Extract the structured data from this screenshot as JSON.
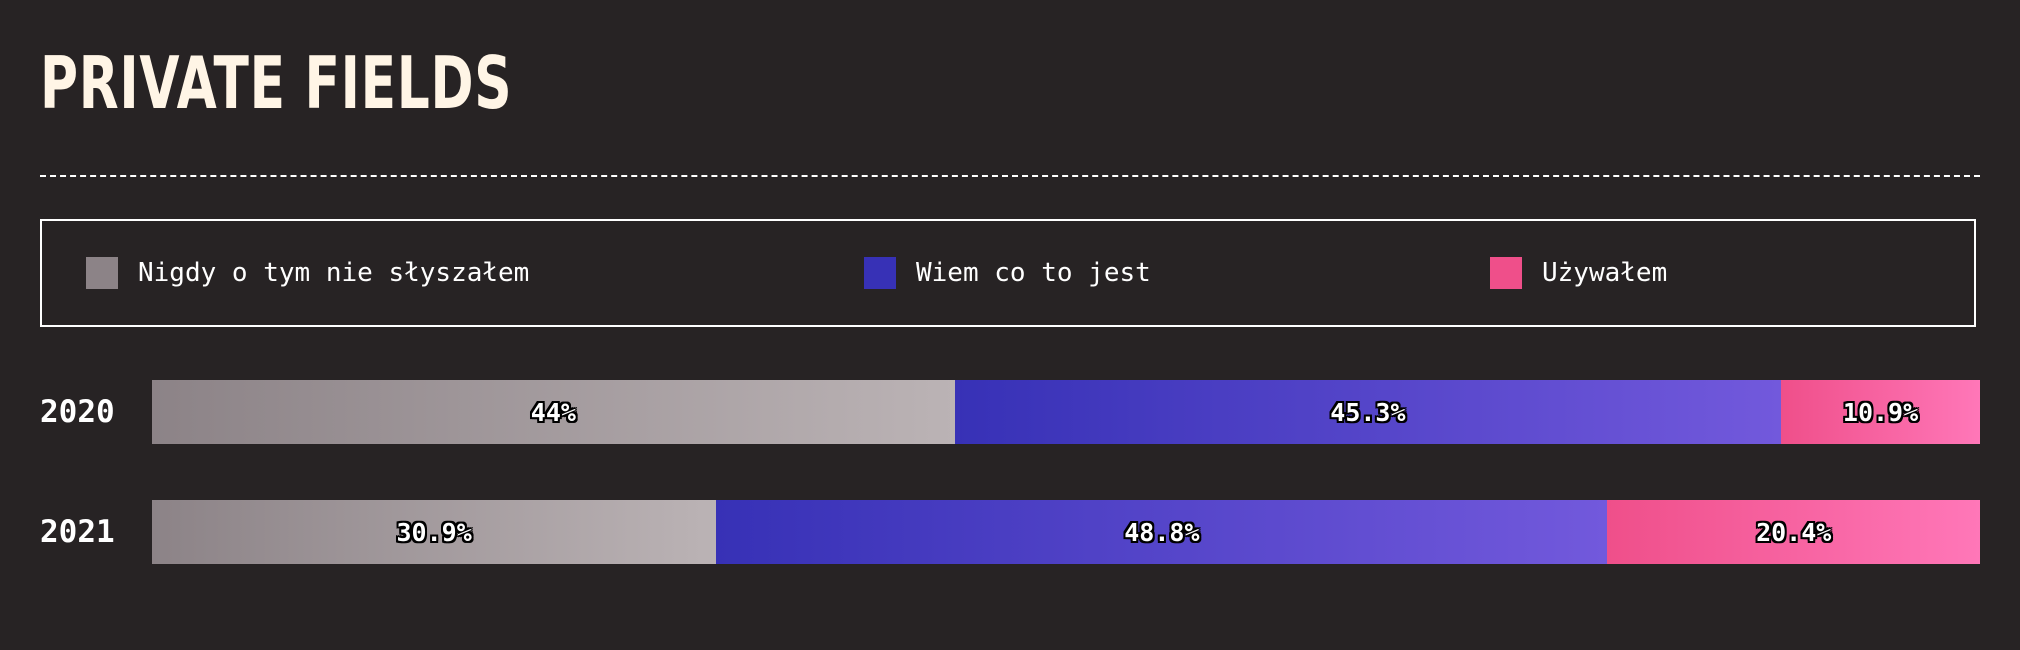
{
  "title": "PRIVATE FIELDS",
  "chart_data": {
    "type": "bar",
    "orientation": "horizontal",
    "stacked": true,
    "normalized": true,
    "title": "PRIVATE FIELDS",
    "legend_placement": "top",
    "categories": [
      "2020",
      "2021"
    ],
    "series": [
      {
        "name": "Nigdy o tym nie słyszałem",
        "values": [
          44,
          30.9
        ],
        "labels": [
          "44%",
          "30.9%"
        ],
        "color_start": "#8c8387",
        "color_end": "#bbb3b5"
      },
      {
        "name": "Wiem co to jest",
        "values": [
          45.3,
          48.8
        ],
        "labels": [
          "45.3%",
          "48.8%"
        ],
        "color_start": "#3731b6",
        "color_end": "#7259dc"
      },
      {
        "name": "Używałem",
        "values": [
          10.9,
          20.4
        ],
        "labels": [
          "10.9%",
          "20.4%"
        ],
        "color_start": "#ef4f8a",
        "color_end": "#ff77b8"
      }
    ],
    "xlim": [
      0,
      100
    ]
  }
}
